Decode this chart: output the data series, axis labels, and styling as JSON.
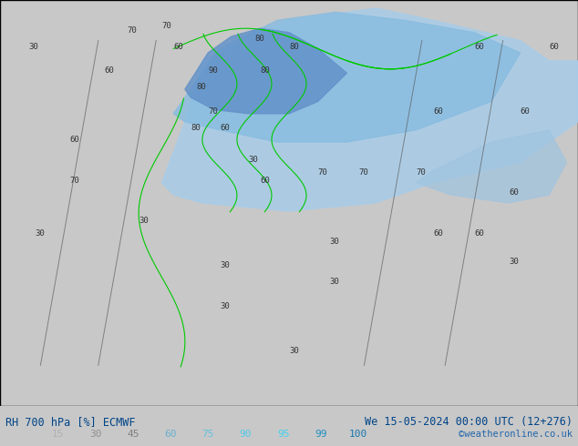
{
  "title_left": "RH 700 hPa [%] ECMWF",
  "title_right": "We 15-05-2024 00:00 UTC (12+276)",
  "credit": "©weatheronline.co.uk",
  "colorbar_labels": [
    "15",
    "30",
    "45",
    "60",
    "75",
    "90",
    "95",
    "99",
    "100"
  ],
  "colorbar_colors": [
    "#d0d0d0",
    "#b0b8c8",
    "#a0b4d0",
    "#90c8e8",
    "#78d0f0",
    "#60d8f8",
    "#40e0f8",
    "#20e8ff",
    "#00f0ff"
  ],
  "bg_color": "#c8c8c8",
  "map_bg": "#d8d8d8",
  "figsize": [
    6.34,
    4.9
  ],
  "dpi": 100
}
